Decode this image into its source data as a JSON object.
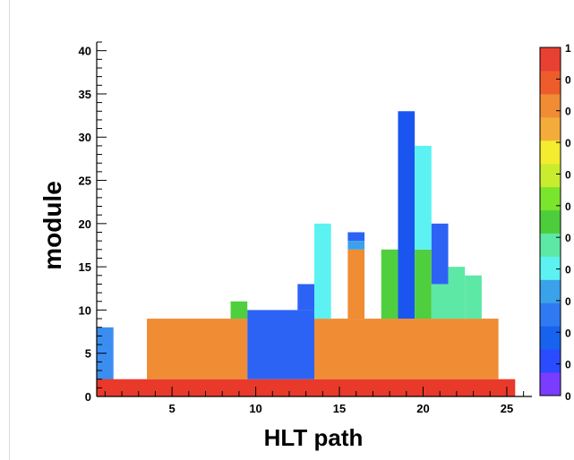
{
  "chart_data": {
    "type": "heatmap",
    "title": "",
    "xlabel": "HLT path",
    "ylabel": "module",
    "xlim": [
      0.5,
      26.5
    ],
    "ylim": [
      0,
      41
    ],
    "xticks": [
      "5",
      "10",
      "15",
      "20",
      "25"
    ],
    "yticks": [
      "0",
      "5",
      "10",
      "15",
      "20",
      "25",
      "30",
      "35",
      "40"
    ],
    "palette": {
      "colors": [
        "#7a3cff",
        "#2a4bff",
        "#1763ee",
        "#2f79f2",
        "#3aa2ea",
        "#5cf2f2",
        "#5de8a6",
        "#4ecd3c",
        "#7be52d",
        "#c9ec2f",
        "#f4ec2e",
        "#f3ac3a",
        "#ef8c34",
        "#ee5c2c",
        "#e84032"
      ],
      "labels": [
        "0",
        "0",
        "0",
        "0",
        "0",
        "0",
        "0",
        "0",
        "0",
        "0",
        "0",
        "1"
      ]
    },
    "cells": [
      {
        "x0": 0.5,
        "x1": 1.5,
        "y0": 0,
        "y1": 8,
        "color": "#3b8ef0"
      },
      {
        "x0": 0.5,
        "x1": 25.5,
        "y0": 0,
        "y1": 2,
        "color": "#e8392b"
      },
      {
        "x0": 3.5,
        "x1": 9.5,
        "y0": 2,
        "y1": 9,
        "color": "#ef8c34"
      },
      {
        "x0": 8.5,
        "x1": 9.5,
        "y0": 9,
        "y1": 11,
        "color": "#4fce3e"
      },
      {
        "x0": 9.5,
        "x1": 13.5,
        "y0": 2,
        "y1": 10,
        "color": "#2d63f5"
      },
      {
        "x0": 12.5,
        "x1": 13.5,
        "y0": 10,
        "y1": 13,
        "color": "#2d63f5"
      },
      {
        "x0": 13.5,
        "x1": 24.5,
        "y0": 2,
        "y1": 9,
        "color": "#ef8c34"
      },
      {
        "x0": 13.5,
        "x1": 14.5,
        "y0": 9,
        "y1": 20,
        "color": "#5cf2f2"
      },
      {
        "x0": 15.5,
        "x1": 16.5,
        "y0": 9,
        "y1": 17,
        "color": "#ef8c34"
      },
      {
        "x0": 15.5,
        "x1": 16.5,
        "y0": 17,
        "y1": 18,
        "color": "#3aa2ea"
      },
      {
        "x0": 15.5,
        "x1": 16.5,
        "y0": 18,
        "y1": 19,
        "color": "#2d63f5"
      },
      {
        "x0": 17.5,
        "x1": 18.5,
        "y0": 9,
        "y1": 17,
        "color": "#4fce3e"
      },
      {
        "x0": 18.5,
        "x1": 19.5,
        "y0": 9,
        "y1": 33,
        "color": "#1a55ef"
      },
      {
        "x0": 19.5,
        "x1": 20.5,
        "y0": 9,
        "y1": 17,
        "color": "#4fce3e"
      },
      {
        "x0": 19.5,
        "x1": 20.5,
        "y0": 17,
        "y1": 29,
        "color": "#5cf2f2"
      },
      {
        "x0": 20.5,
        "x1": 21.5,
        "y0": 9,
        "y1": 13,
        "color": "#5de8a6"
      },
      {
        "x0": 20.5,
        "x1": 21.5,
        "y0": 13,
        "y1": 20,
        "color": "#2d63f5"
      },
      {
        "x0": 21.5,
        "x1": 22.5,
        "y0": 9,
        "y1": 15,
        "color": "#5de8a6"
      },
      {
        "x0": 22.5,
        "x1": 23.5,
        "y0": 9,
        "y1": 14,
        "color": "#5de8a6"
      }
    ]
  }
}
